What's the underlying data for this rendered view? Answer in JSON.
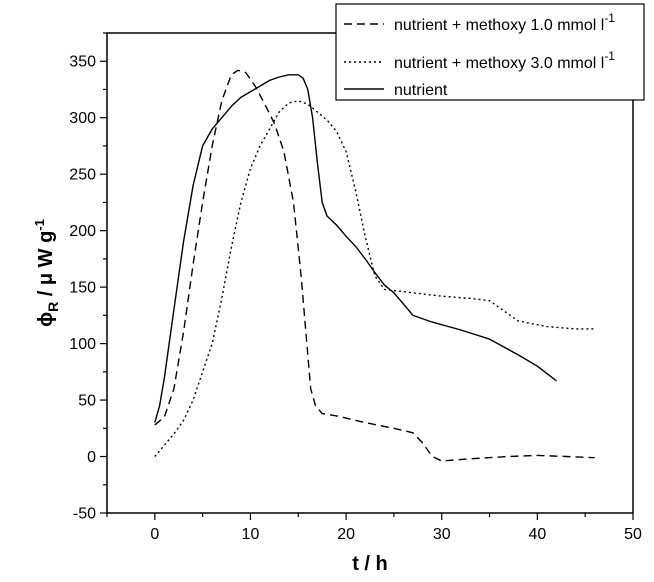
{
  "chart_data": {
    "type": "line",
    "xlabel": "t / h",
    "ylabel_parts": {
      "phi": "ϕ",
      "sub": "R",
      "rest": " / μ W g",
      "sup": "-1"
    },
    "xlim": [
      -5,
      50
    ],
    "ylim": [
      -50,
      375
    ],
    "x_ticks": [
      0,
      10,
      20,
      30,
      40,
      50
    ],
    "y_ticks": [
      -50,
      0,
      50,
      100,
      150,
      200,
      250,
      300,
      350
    ],
    "grid": false,
    "legend_position": "top-right",
    "series": [
      {
        "legend": {
          "text": "nutrient + methoxy 1.0 mmol l",
          "sup": "-1"
        },
        "line_style": "dashed",
        "color": "#000000",
        "points": [
          [
            0,
            28
          ],
          [
            1,
            35
          ],
          [
            2,
            60
          ],
          [
            3,
            110
          ],
          [
            4,
            170
          ],
          [
            5,
            225
          ],
          [
            6,
            275
          ],
          [
            7,
            315
          ],
          [
            8,
            338
          ],
          [
            8.7,
            342
          ],
          [
            9.5,
            340
          ],
          [
            10.5,
            328
          ],
          [
            11.5,
            312
          ],
          [
            12.5,
            295
          ],
          [
            13.5,
            270
          ],
          [
            14.5,
            225
          ],
          [
            15.3,
            160
          ],
          [
            15.8,
            110
          ],
          [
            16.3,
            60
          ],
          [
            16.8,
            45
          ],
          [
            17.5,
            38
          ],
          [
            19,
            36
          ],
          [
            22,
            30
          ],
          [
            25,
            25
          ],
          [
            27,
            21
          ],
          [
            28,
            12
          ],
          [
            29,
            0
          ],
          [
            30,
            -4
          ],
          [
            33,
            -2
          ],
          [
            37,
            0
          ],
          [
            40,
            1
          ],
          [
            43,
            0
          ],
          [
            46,
            -1
          ]
        ]
      },
      {
        "legend": {
          "text": "nutrient + methoxy 3.0 mmol l",
          "sup": "-1"
        },
        "line_style": "dotted",
        "color": "#000000",
        "points": [
          [
            0,
            0
          ],
          [
            1,
            10
          ],
          [
            2,
            20
          ],
          [
            3,
            32
          ],
          [
            4,
            50
          ],
          [
            5,
            75
          ],
          [
            6,
            100
          ],
          [
            7,
            140
          ],
          [
            8,
            185
          ],
          [
            9,
            225
          ],
          [
            10,
            255
          ],
          [
            11,
            275
          ],
          [
            12,
            290
          ],
          [
            13,
            305
          ],
          [
            14,
            313
          ],
          [
            15,
            315
          ],
          [
            16,
            312
          ],
          [
            17,
            305
          ],
          [
            18,
            298
          ],
          [
            19,
            288
          ],
          [
            20,
            270
          ],
          [
            21,
            235
          ],
          [
            22,
            195
          ],
          [
            23,
            160
          ],
          [
            24,
            148
          ],
          [
            25,
            147
          ],
          [
            27,
            145
          ],
          [
            30,
            142
          ],
          [
            33,
            140
          ],
          [
            35,
            138
          ],
          [
            36,
            132
          ],
          [
            38,
            120
          ],
          [
            41,
            115
          ],
          [
            44,
            113
          ],
          [
            46,
            113
          ]
        ]
      },
      {
        "legend": {
          "text": "nutrient",
          "sup": ""
        },
        "line_style": "solid",
        "color": "#000000",
        "points": [
          [
            0,
            30
          ],
          [
            0.5,
            45
          ],
          [
            1,
            70
          ],
          [
            2,
            130
          ],
          [
            3,
            190
          ],
          [
            4,
            240
          ],
          [
            5,
            275
          ],
          [
            6,
            290
          ],
          [
            7,
            300
          ],
          [
            8,
            310
          ],
          [
            9,
            318
          ],
          [
            10,
            323
          ],
          [
            11,
            328
          ],
          [
            12,
            333
          ],
          [
            13,
            336
          ],
          [
            14,
            338
          ],
          [
            15,
            338
          ],
          [
            15.5,
            335
          ],
          [
            16,
            325
          ],
          [
            16.5,
            300
          ],
          [
            17,
            260
          ],
          [
            17.5,
            225
          ],
          [
            18,
            213
          ],
          [
            19,
            205
          ],
          [
            20,
            195
          ],
          [
            21,
            186
          ],
          [
            22,
            175
          ],
          [
            23,
            163
          ],
          [
            24,
            152
          ],
          [
            25,
            145
          ],
          [
            26,
            135
          ],
          [
            27,
            125
          ],
          [
            29,
            119
          ],
          [
            32,
            112
          ],
          [
            35,
            104
          ],
          [
            38,
            90
          ],
          [
            40,
            80
          ],
          [
            42,
            67
          ]
        ]
      }
    ]
  }
}
